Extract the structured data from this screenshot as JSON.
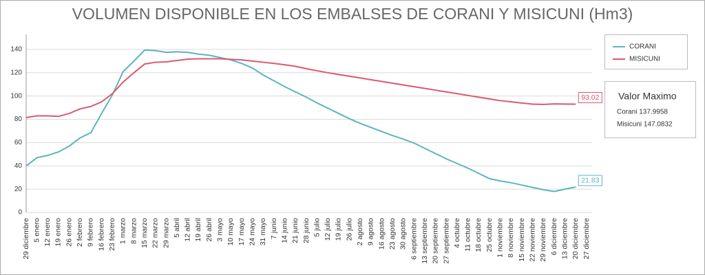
{
  "chart_data": {
    "type": "line",
    "title": "VOLUMEN DISPONIBLE EN LOS EMBALSES DE CORANI Y MISICUNI (Hm3)",
    "categories": [
      "29 diciembre",
      "5 enero",
      "12 enero",
      "19 enero",
      "26 enero",
      "2 febrero",
      "9 febrero",
      "16 febrero",
      "23 febrero",
      "1 marzo",
      "8 marzo",
      "15 marzo",
      "22 marzo",
      "29 marzo",
      "5 abril",
      "12 abril",
      "19 abril",
      "26 abril",
      "3 mayo",
      "10 mayo",
      "17 mayo",
      "24 mayo",
      "31 mayo",
      "7 junio",
      "14 junio",
      "21 junio",
      "28 junio",
      "5 julio",
      "12 julio",
      "19 julio",
      "26 julio",
      "2 agosto",
      "9 agosto",
      "16 agosto",
      "23 agosto",
      "30 agosto",
      "6 septiembre",
      "13 septiembre",
      "20 septiembre",
      "27 septiembre",
      "4 octubre",
      "11 octubre",
      "18 octubre",
      "25 octubre",
      "1 noviembre",
      "8 noviembre",
      "15 noviembre",
      "22 noviembre",
      "29 noviembre",
      "6 diciembre",
      "13 diciembre",
      "20 diciembre",
      "27 diciembre"
    ],
    "series": [
      {
        "name": "CORANI",
        "color": "#5ab4c1",
        "values": [
          40,
          47,
          49,
          52,
          57,
          64,
          68.5,
          85,
          101,
          121,
          130,
          139.5,
          139,
          137.5,
          138,
          137.5,
          136,
          135,
          133,
          131,
          128,
          124,
          118,
          113,
          108,
          103.5,
          99,
          94,
          89.5,
          85,
          80.5,
          76.5,
          73,
          69.5,
          66,
          63,
          59.5,
          55,
          50.5,
          46,
          42,
          38,
          33.5,
          29,
          27,
          25.5,
          23.5,
          21.5,
          19.5,
          18,
          20,
          21.83,
          null
        ]
      },
      {
        "name": "MISICUNI",
        "color": "#d9596c",
        "values": [
          81.5,
          83,
          83,
          82.5,
          85,
          89,
          91,
          95,
          102,
          112,
          120,
          127.5,
          129,
          129.3,
          130.5,
          131.7,
          132,
          132,
          132,
          131.5,
          131,
          130,
          129,
          128,
          126.8,
          125.5,
          123.5,
          121.7,
          120,
          118.5,
          117,
          115.5,
          114,
          112.5,
          111,
          109.5,
          108,
          106.5,
          105,
          103.5,
          102,
          100.5,
          99,
          97.5,
          96,
          95,
          94,
          93,
          92.8,
          93.2,
          93.1,
          93.02,
          null
        ]
      }
    ],
    "ylim": [
      0,
      150
    ],
    "yticks": [
      0,
      20,
      40,
      60,
      80,
      100,
      120,
      140
    ],
    "grid": true,
    "panel": {
      "title": "Valor Maximo",
      "items": [
        "Corani 137.9958",
        "Misicuni 147.0832"
      ]
    }
  }
}
